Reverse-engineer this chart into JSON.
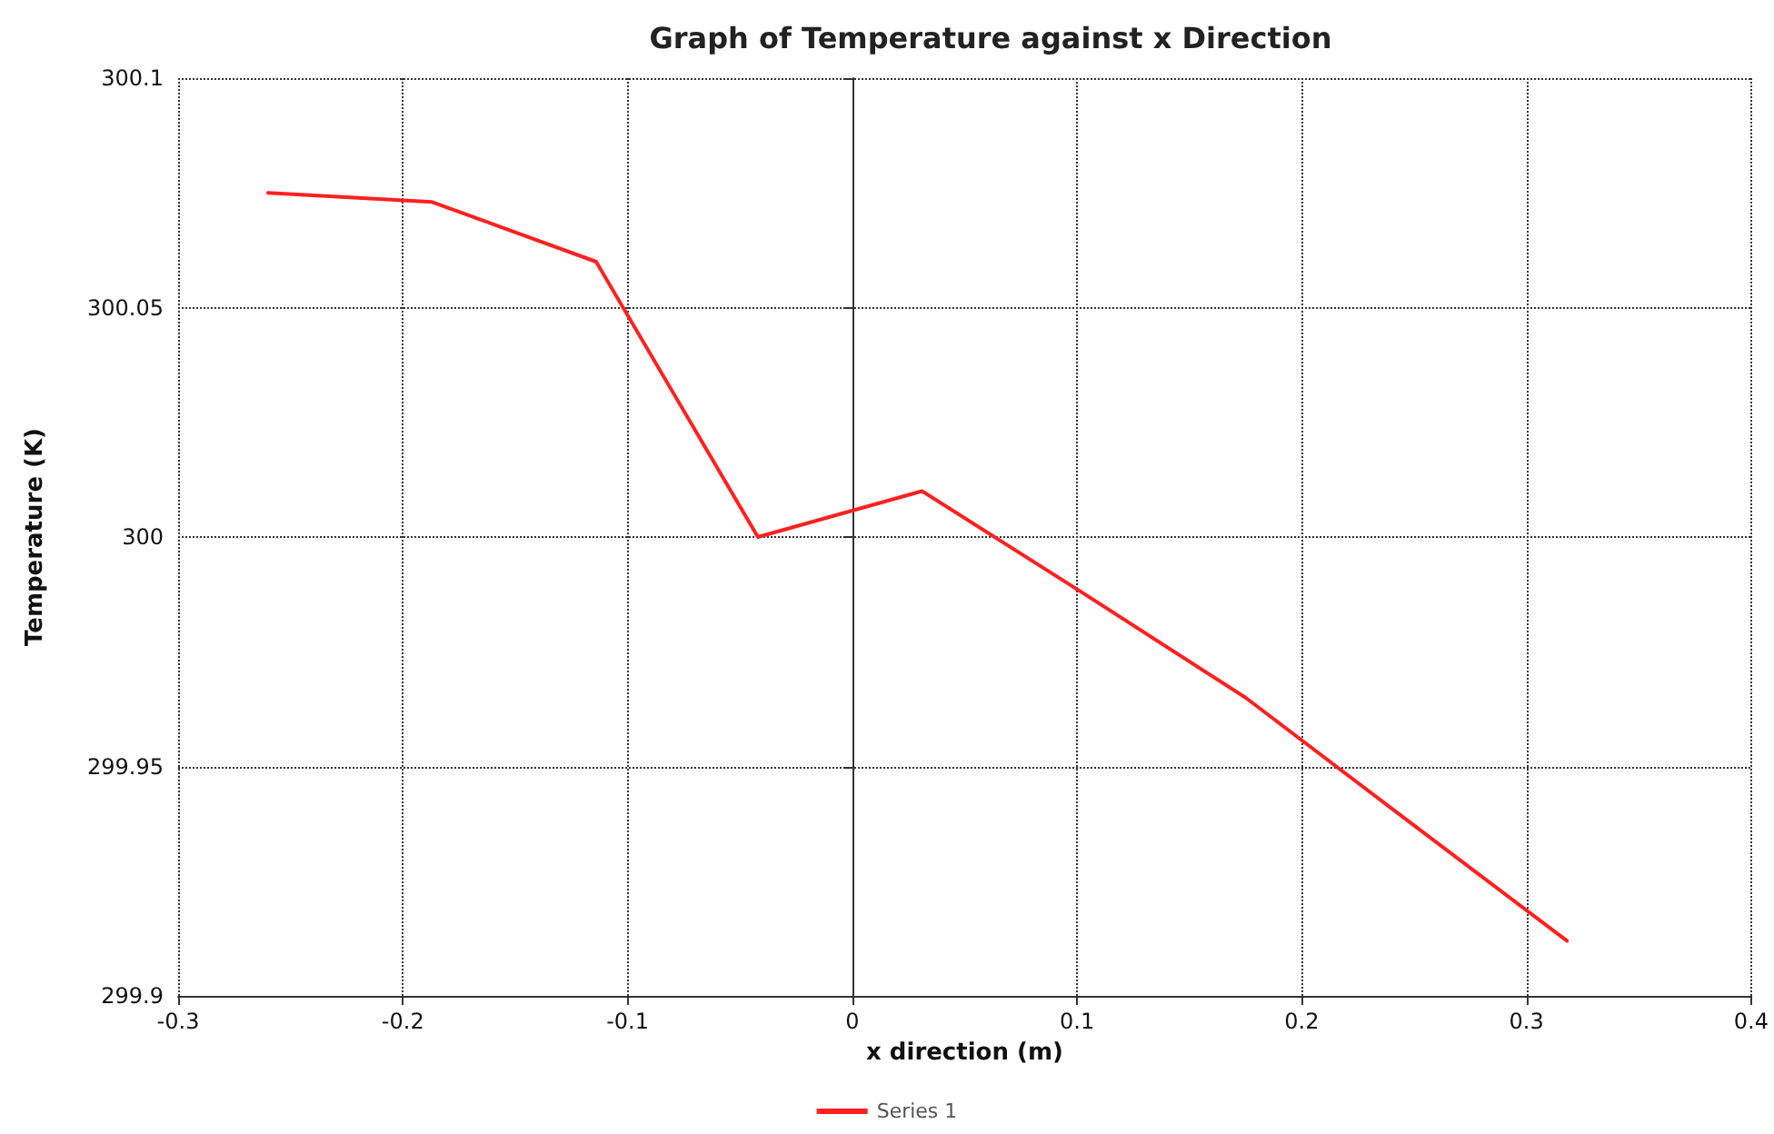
{
  "chart_data": {
    "type": "line",
    "title": "Graph of Temperature against x Direction",
    "xlabel": "x direction (m)",
    "ylabel": "Temperature (K)",
    "x": [
      -0.26,
      -0.187,
      -0.114,
      -0.042,
      0.031,
      0.102,
      0.175,
      0.245,
      0.318
    ],
    "series": [
      {
        "name": "Series 1",
        "color": "#ff2020",
        "values": [
          300.075,
          300.073,
          300.06,
          300.0,
          300.01,
          299.988,
          299.965,
          299.939,
          299.912
        ]
      }
    ],
    "xlim": [
      -0.3,
      0.4
    ],
    "xticks": [
      -0.3,
      -0.2,
      -0.1,
      0,
      0.1,
      0.2,
      0.3,
      0.4
    ],
    "ylim": [
      299.9,
      300.1
    ],
    "yticks": [
      299.9,
      299.95,
      300,
      300.05,
      300.1
    ],
    "grid": true,
    "legend": "bottom",
    "marker": "none",
    "line_style": "solid"
  }
}
